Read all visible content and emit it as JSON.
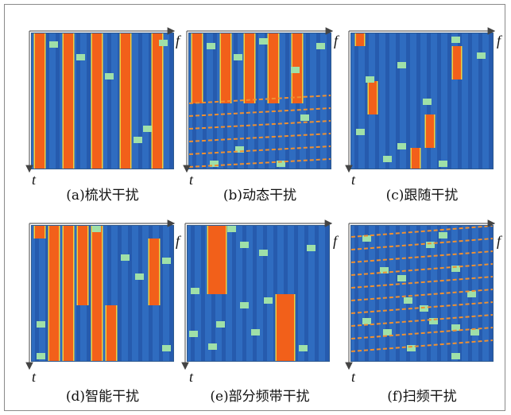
{
  "axis": {
    "f": "f",
    "t": "t"
  },
  "panels": [
    {
      "id": "a",
      "caption": "(a)梳状干扰"
    },
    {
      "id": "b",
      "caption": "(b)动态干扰"
    },
    {
      "id": "c",
      "caption": "(c)跟随干扰"
    },
    {
      "id": "d",
      "caption": "(d)智能干扰"
    },
    {
      "id": "e",
      "caption": "(e)部分频带干扰"
    },
    {
      "id": "f",
      "caption": "(f)扫频干扰"
    }
  ],
  "colors": {
    "background_noise": "#2f6cc0",
    "noise_stripe": "#1f4f9f",
    "jamming": "#f2601a",
    "jamming_edge": "#f0d040",
    "signal": "#9fe0a8",
    "sweep_line": "#f09030"
  }
}
